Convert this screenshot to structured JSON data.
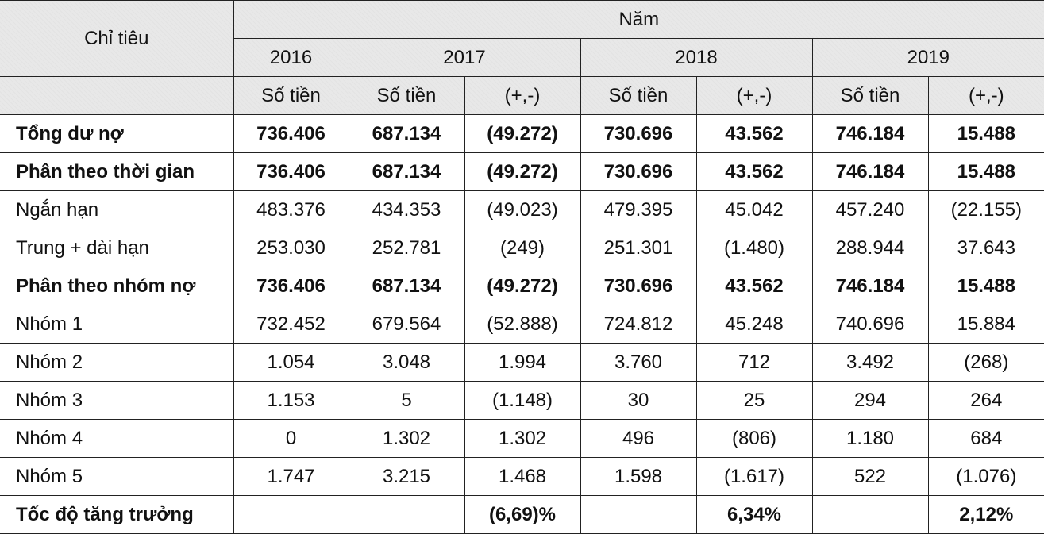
{
  "header": {
    "row_label": "Chỉ tiêu",
    "group_label": "Năm",
    "years": [
      "2016",
      "2017",
      "2018",
      "2019"
    ],
    "amount_label": "Số tiền",
    "change_label": "(+,-)"
  },
  "rows": [
    {
      "label": "Tổng dư nợ",
      "bold": true,
      "values": [
        "736.406",
        "687.134",
        "(49.272)",
        "730.696",
        "43.562",
        "746.184",
        "15.488"
      ]
    },
    {
      "label": "Phân theo thời gian",
      "bold": true,
      "values": [
        "736.406",
        "687.134",
        "(49.272)",
        "730.696",
        "43.562",
        "746.184",
        "15.488"
      ]
    },
    {
      "label": "Ngắn hạn",
      "bold": false,
      "values": [
        "483.376",
        "434.353",
        "(49.023)",
        "479.395",
        "45.042",
        "457.240",
        "(22.155)"
      ]
    },
    {
      "label": "Trung + dài hạn",
      "bold": false,
      "values": [
        "253.030",
        "252.781",
        "(249)",
        "251.301",
        "(1.480)",
        "288.944",
        "37.643"
      ]
    },
    {
      "label": "Phân theo nhóm nợ",
      "bold": true,
      "values": [
        "736.406",
        "687.134",
        "(49.272)",
        "730.696",
        "43.562",
        "746.184",
        "15.488"
      ]
    },
    {
      "label": "Nhóm 1",
      "bold": false,
      "values": [
        "732.452",
        "679.564",
        "(52.888)",
        "724.812",
        "45.248",
        "740.696",
        "15.884"
      ]
    },
    {
      "label": "Nhóm 2",
      "bold": false,
      "values": [
        "1.054",
        "3.048",
        "1.994",
        "3.760",
        "712",
        "3.492",
        "(268)"
      ]
    },
    {
      "label": "Nhóm 3",
      "bold": false,
      "values": [
        "1.153",
        "5",
        "(1.148)",
        "30",
        "25",
        "294",
        "264"
      ]
    },
    {
      "label": "Nhóm 4",
      "bold": false,
      "values": [
        "0",
        "1.302",
        "1.302",
        "496",
        "(806)",
        "1.180",
        "684"
      ]
    },
    {
      "label": "Nhóm 5",
      "bold": false,
      "values": [
        "1.747",
        "3.215",
        "1.468",
        "1.598",
        "(1.617)",
        "522",
        "(1.076)"
      ]
    },
    {
      "label": "Tốc độ tăng trưởng",
      "bold": true,
      "values": [
        "",
        "",
        "(6,69)%",
        "",
        "6,34%",
        "",
        "2,12%"
      ]
    }
  ]
}
